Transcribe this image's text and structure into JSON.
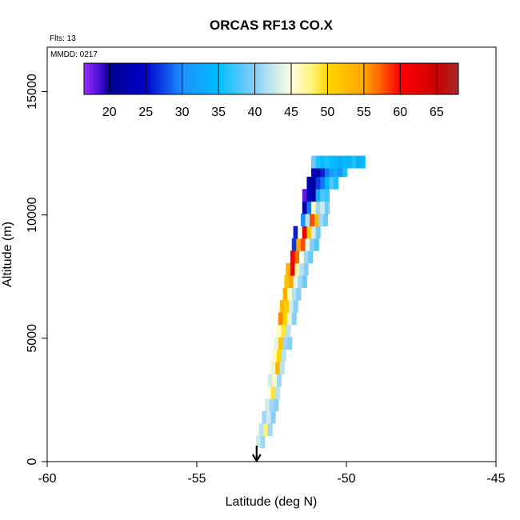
{
  "chart_data": {
    "type": "heatmap",
    "title": "ORCAS RF13 CO.X",
    "annotations": {
      "flights": "Flts: 13",
      "date": "MMDD: 0217"
    },
    "xlabel": "Latitude (deg N)",
    "ylabel": "Altitude (m)",
    "xlim": [
      -60,
      -45
    ],
    "ylim": [
      0,
      16800
    ],
    "x_ticks": [
      -60,
      -55,
      -50,
      -45
    ],
    "y_ticks": [
      0,
      5000,
      10000,
      15000
    ],
    "grid": false,
    "legend": {
      "placement": "top-left",
      "range": [
        16.5,
        68
      ],
      "ticks": [
        20,
        25,
        30,
        35,
        40,
        45,
        50,
        55,
        60,
        65
      ],
      "stops": [
        {
          "v": 16.5,
          "c": "#9b30ff"
        },
        {
          "v": 19,
          "c": "#3a0acc"
        },
        {
          "v": 20,
          "c": "#00008b"
        },
        {
          "v": 25,
          "c": "#0000cd"
        },
        {
          "v": 30,
          "c": "#1e90ff"
        },
        {
          "v": 35,
          "c": "#00bfff"
        },
        {
          "v": 40,
          "c": "#87cefa"
        },
        {
          "v": 45,
          "c": "#ffffe0"
        },
        {
          "v": 48,
          "c": "#fff176"
        },
        {
          "v": 50,
          "c": "#ffd700"
        },
        {
          "v": 55,
          "c": "#ffa500"
        },
        {
          "v": 57,
          "c": "#ff6a00"
        },
        {
          "v": 60,
          "c": "#ff0000"
        },
        {
          "v": 65,
          "c": "#cd0000"
        },
        {
          "v": 68,
          "c": "#a52a2a"
        }
      ]
    },
    "series": [
      {
        "cells": [
          [
            -52.95,
            800,
            43
          ],
          [
            -52.8,
            800,
            41
          ],
          [
            -52.85,
            1300,
            42
          ],
          [
            -52.7,
            1300,
            48
          ],
          [
            -52.55,
            1300,
            41
          ],
          [
            -52.75,
            1800,
            41
          ],
          [
            -52.6,
            1800,
            43
          ],
          [
            -52.45,
            1800,
            40
          ],
          [
            -52.65,
            2300,
            43
          ],
          [
            -52.5,
            2300,
            41
          ],
          [
            -52.35,
            2300,
            40
          ],
          [
            -52.6,
            2800,
            45
          ],
          [
            -52.45,
            2800,
            49
          ],
          [
            -52.3,
            2800,
            42
          ],
          [
            -52.55,
            3300,
            43
          ],
          [
            -52.4,
            3300,
            46
          ],
          [
            -52.25,
            3300,
            41
          ],
          [
            -52.45,
            3800,
            44
          ],
          [
            -52.3,
            3800,
            53
          ],
          [
            -52.15,
            3800,
            42
          ],
          [
            -52.4,
            4300,
            46
          ],
          [
            -52.25,
            4300,
            50
          ],
          [
            -52.1,
            4300,
            42
          ],
          [
            -52.35,
            4800,
            44
          ],
          [
            -52.2,
            4800,
            52
          ],
          [
            -52.05,
            4800,
            41
          ],
          [
            -51.9,
            4800,
            40
          ],
          [
            -52.25,
            5300,
            46
          ],
          [
            -52.1,
            5300,
            49
          ],
          [
            -51.95,
            5300,
            42
          ],
          [
            -52.2,
            5800,
            56
          ],
          [
            -52.05,
            5800,
            50
          ],
          [
            -51.9,
            5800,
            44
          ],
          [
            -51.75,
            5800,
            40
          ],
          [
            -52.15,
            6300,
            53
          ],
          [
            -52.0,
            6300,
            51
          ],
          [
            -51.85,
            6300,
            43
          ],
          [
            -51.7,
            6300,
            40
          ],
          [
            -52.05,
            6800,
            54
          ],
          [
            -51.9,
            6800,
            46
          ],
          [
            -51.75,
            6800,
            42
          ],
          [
            -51.6,
            6800,
            40
          ],
          [
            -52.0,
            7300,
            52
          ],
          [
            -51.85,
            7300,
            55
          ],
          [
            -51.7,
            7300,
            44
          ],
          [
            -51.55,
            7300,
            41
          ],
          [
            -51.4,
            7300,
            39
          ],
          [
            -51.95,
            7800,
            54
          ],
          [
            -51.8,
            7800,
            62
          ],
          [
            -51.65,
            7800,
            47
          ],
          [
            -51.5,
            7800,
            42
          ],
          [
            -51.35,
            7800,
            40
          ],
          [
            -51.8,
            8300,
            60
          ],
          [
            -51.65,
            8300,
            57
          ],
          [
            -51.5,
            8300,
            45
          ],
          [
            -51.35,
            8300,
            41
          ],
          [
            -51.2,
            8300,
            39
          ],
          [
            -51.75,
            8800,
            27
          ],
          [
            -51.6,
            8800,
            55
          ],
          [
            -51.45,
            8800,
            58
          ],
          [
            -51.3,
            8800,
            44
          ],
          [
            -51.15,
            8800,
            40
          ],
          [
            -51.0,
            8800,
            38
          ],
          [
            -51.7,
            9300,
            26
          ],
          [
            -51.55,
            9300,
            45
          ],
          [
            -51.4,
            9300,
            62
          ],
          [
            -51.25,
            9300,
            52
          ],
          [
            -51.1,
            9300,
            43
          ],
          [
            -50.95,
            9300,
            39
          ],
          [
            -51.45,
            9800,
            30
          ],
          [
            -51.3,
            9800,
            42
          ],
          [
            -51.15,
            9800,
            58
          ],
          [
            -51.0,
            9800,
            53
          ],
          [
            -50.85,
            9800,
            41
          ],
          [
            -50.7,
            9800,
            39
          ],
          [
            -51.4,
            10300,
            22
          ],
          [
            -51.25,
            10300,
            29
          ],
          [
            -51.1,
            10300,
            46
          ],
          [
            -50.95,
            10300,
            41
          ],
          [
            -50.8,
            10300,
            43
          ],
          [
            -50.65,
            10300,
            39
          ],
          [
            -51.4,
            10800,
            18
          ],
          [
            -51.25,
            10800,
            24
          ],
          [
            -51.1,
            10800,
            22
          ],
          [
            -50.95,
            10800,
            33
          ],
          [
            -50.8,
            10800,
            38
          ],
          [
            -50.65,
            10800,
            37
          ],
          [
            -51.25,
            11300,
            23
          ],
          [
            -51.1,
            11300,
            21
          ],
          [
            -50.95,
            11300,
            27
          ],
          [
            -50.8,
            11300,
            29
          ],
          [
            -50.65,
            11300,
            34
          ],
          [
            -50.5,
            11300,
            38
          ],
          [
            -50.35,
            11300,
            36
          ],
          [
            -51.1,
            11800,
            24
          ],
          [
            -50.95,
            11800,
            22
          ],
          [
            -50.8,
            11800,
            26
          ],
          [
            -50.65,
            11800,
            29
          ],
          [
            -50.5,
            11800,
            31
          ],
          [
            -50.35,
            11800,
            33
          ],
          [
            -50.2,
            11800,
            30
          ],
          [
            -50.05,
            11800,
            36
          ],
          [
            -51.1,
            12150,
            39
          ],
          [
            -50.95,
            12150,
            36
          ],
          [
            -50.8,
            12150,
            35
          ],
          [
            -50.65,
            12150,
            36
          ],
          [
            -50.5,
            12150,
            35
          ],
          [
            -50.35,
            12150,
            34
          ],
          [
            -50.2,
            12150,
            33
          ],
          [
            -50.05,
            12150,
            35
          ],
          [
            -49.9,
            12150,
            34
          ],
          [
            -49.75,
            12150,
            36
          ],
          [
            -49.6,
            12150,
            33
          ],
          [
            -49.45,
            12150,
            35
          ]
        ]
      }
    ],
    "marker": {
      "label": "takeoff-arrow",
      "lat": -53.0,
      "alt": 0
    }
  }
}
